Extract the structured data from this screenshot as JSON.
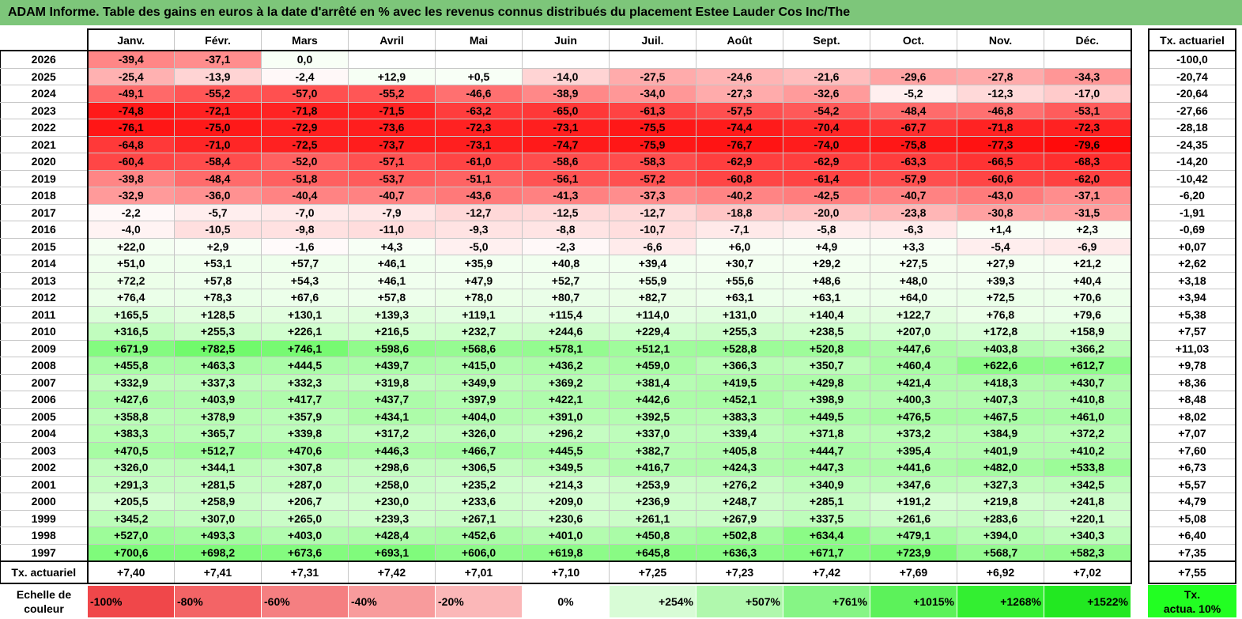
{
  "title": "ADAM Informe. Table des gains en euros à la date d'arrêté en % avec les revenus connus distribués du placement Estee Lauder Cos Inc/The",
  "months": [
    "Janv.",
    "Févr.",
    "Mars",
    "Avril",
    "Mai",
    "Juin",
    "Juil.",
    "Août",
    "Sept.",
    "Oct.",
    "Nov.",
    "Déc."
  ],
  "tx_header": "Tx. actuariel",
  "rows": [
    {
      "year": "2026",
      "vals": [
        "-39,4",
        "-37,1",
        "0,0",
        "",
        "",
        "",
        "",
        "",
        "",
        "",
        "",
        ""
      ],
      "tx": "-100,0"
    },
    {
      "year": "2025",
      "vals": [
        "-25,4",
        "-13,9",
        "-2,4",
        "+12,9",
        "+0,5",
        "-14,0",
        "-27,5",
        "-24,6",
        "-21,6",
        "-29,6",
        "-27,8",
        "-34,3"
      ],
      "tx": "-20,74"
    },
    {
      "year": "2024",
      "vals": [
        "-49,1",
        "-55,2",
        "-57,0",
        "-55,2",
        "-46,6",
        "-38,9",
        "-34,0",
        "-27,3",
        "-32,6",
        "-5,2",
        "-12,3",
        "-17,0"
      ],
      "tx": "-20,64"
    },
    {
      "year": "2023",
      "vals": [
        "-74,8",
        "-72,1",
        "-71,8",
        "-71,5",
        "-63,2",
        "-65,0",
        "-61,3",
        "-57,5",
        "-54,2",
        "-48,4",
        "-46,8",
        "-53,1"
      ],
      "tx": "-27,66"
    },
    {
      "year": "2022",
      "vals": [
        "-76,1",
        "-75,0",
        "-72,9",
        "-73,6",
        "-72,3",
        "-73,1",
        "-75,5",
        "-74,4",
        "-70,4",
        "-67,7",
        "-71,8",
        "-72,3"
      ],
      "tx": "-28,18"
    },
    {
      "year": "2021",
      "vals": [
        "-64,8",
        "-71,0",
        "-72,5",
        "-73,7",
        "-73,1",
        "-74,7",
        "-75,9",
        "-76,7",
        "-74,0",
        "-75,8",
        "-77,3",
        "-79,6"
      ],
      "tx": "-24,35"
    },
    {
      "year": "2020",
      "vals": [
        "-60,4",
        "-58,4",
        "-52,0",
        "-57,1",
        "-61,0",
        "-58,6",
        "-58,3",
        "-62,9",
        "-62,9",
        "-63,3",
        "-66,5",
        "-68,3"
      ],
      "tx": "-14,20"
    },
    {
      "year": "2019",
      "vals": [
        "-39,8",
        "-48,4",
        "-51,8",
        "-53,7",
        "-51,1",
        "-56,1",
        "-57,2",
        "-60,8",
        "-61,4",
        "-57,9",
        "-60,6",
        "-62,0"
      ],
      "tx": "-10,42"
    },
    {
      "year": "2018",
      "vals": [
        "-32,9",
        "-36,0",
        "-40,4",
        "-40,7",
        "-43,6",
        "-41,3",
        "-37,3",
        "-40,2",
        "-42,5",
        "-40,7",
        "-43,0",
        "-37,1"
      ],
      "tx": "-6,20"
    },
    {
      "year": "2017",
      "vals": [
        "-2,2",
        "-5,7",
        "-7,0",
        "-7,9",
        "-12,7",
        "-12,5",
        "-12,7",
        "-18,8",
        "-20,0",
        "-23,8",
        "-30,8",
        "-31,5"
      ],
      "tx": "-1,91"
    },
    {
      "year": "2016",
      "vals": [
        "-4,0",
        "-10,5",
        "-9,8",
        "-11,0",
        "-9,3",
        "-8,8",
        "-10,7",
        "-7,1",
        "-5,8",
        "-6,3",
        "+1,4",
        "+2,3"
      ],
      "tx": "-0,69"
    },
    {
      "year": "2015",
      "vals": [
        "+22,0",
        "+2,9",
        "-1,6",
        "+4,3",
        "-5,0",
        "-2,3",
        "-6,6",
        "+6,0",
        "+4,9",
        "+3,3",
        "-5,4",
        "-6,9"
      ],
      "tx": "+0,07"
    },
    {
      "year": "2014",
      "vals": [
        "+51,0",
        "+53,1",
        "+57,7",
        "+46,1",
        "+35,9",
        "+40,8",
        "+39,4",
        "+30,7",
        "+29,2",
        "+27,5",
        "+27,9",
        "+21,2"
      ],
      "tx": "+2,62"
    },
    {
      "year": "2013",
      "vals": [
        "+72,2",
        "+57,8",
        "+54,3",
        "+46,1",
        "+47,9",
        "+52,7",
        "+55,9",
        "+55,6",
        "+48,6",
        "+48,0",
        "+39,3",
        "+40,4"
      ],
      "tx": "+3,18"
    },
    {
      "year": "2012",
      "vals": [
        "+76,4",
        "+78,3",
        "+67,6",
        "+57,8",
        "+78,0",
        "+80,7",
        "+82,7",
        "+63,1",
        "+63,1",
        "+64,0",
        "+72,5",
        "+70,6"
      ],
      "tx": "+3,94"
    },
    {
      "year": "2011",
      "vals": [
        "+165,5",
        "+128,5",
        "+130,1",
        "+139,3",
        "+119,1",
        "+115,4",
        "+114,0",
        "+131,0",
        "+140,4",
        "+122,7",
        "+76,8",
        "+79,6"
      ],
      "tx": "+5,38"
    },
    {
      "year": "2010",
      "vals": [
        "+316,5",
        "+255,3",
        "+226,1",
        "+216,5",
        "+232,7",
        "+244,6",
        "+229,4",
        "+255,3",
        "+238,5",
        "+207,0",
        "+172,8",
        "+158,9"
      ],
      "tx": "+7,57"
    },
    {
      "year": "2009",
      "vals": [
        "+671,9",
        "+782,5",
        "+746,1",
        "+598,6",
        "+568,6",
        "+578,1",
        "+512,1",
        "+528,8",
        "+520,8",
        "+447,6",
        "+403,8",
        "+366,2"
      ],
      "tx": "+11,03"
    },
    {
      "year": "2008",
      "vals": [
        "+455,8",
        "+463,3",
        "+444,5",
        "+439,7",
        "+415,0",
        "+436,2",
        "+459,0",
        "+366,3",
        "+350,7",
        "+460,4",
        "+622,6",
        "+612,7"
      ],
      "tx": "+9,78"
    },
    {
      "year": "2007",
      "vals": [
        "+332,9",
        "+337,3",
        "+332,3",
        "+319,8",
        "+349,9",
        "+369,2",
        "+381,4",
        "+419,5",
        "+429,8",
        "+421,4",
        "+418,3",
        "+430,7"
      ],
      "tx": "+8,36"
    },
    {
      "year": "2006",
      "vals": [
        "+427,6",
        "+403,9",
        "+417,7",
        "+437,7",
        "+397,9",
        "+422,1",
        "+442,6",
        "+452,1",
        "+398,9",
        "+400,3",
        "+407,3",
        "+410,8"
      ],
      "tx": "+8,48"
    },
    {
      "year": "2005",
      "vals": [
        "+358,8",
        "+378,9",
        "+357,9",
        "+434,1",
        "+404,0",
        "+391,0",
        "+392,5",
        "+383,3",
        "+449,5",
        "+476,5",
        "+467,5",
        "+461,0"
      ],
      "tx": "+8,02"
    },
    {
      "year": "2004",
      "vals": [
        "+383,3",
        "+365,7",
        "+339,8",
        "+317,2",
        "+326,0",
        "+296,2",
        "+337,0",
        "+339,4",
        "+371,8",
        "+373,2",
        "+384,9",
        "+372,2"
      ],
      "tx": "+7,07"
    },
    {
      "year": "2003",
      "vals": [
        "+470,5",
        "+512,7",
        "+470,6",
        "+446,3",
        "+466,7",
        "+445,5",
        "+382,7",
        "+405,8",
        "+444,7",
        "+395,4",
        "+401,9",
        "+410,2"
      ],
      "tx": "+7,60"
    },
    {
      "year": "2002",
      "vals": [
        "+326,0",
        "+344,1",
        "+307,8",
        "+298,6",
        "+306,5",
        "+349,5",
        "+416,7",
        "+424,3",
        "+447,3",
        "+441,6",
        "+482,0",
        "+533,8"
      ],
      "tx": "+6,73"
    },
    {
      "year": "2001",
      "vals": [
        "+291,3",
        "+281,5",
        "+287,0",
        "+258,0",
        "+235,2",
        "+214,3",
        "+253,9",
        "+276,2",
        "+340,9",
        "+347,6",
        "+327,3",
        "+342,5"
      ],
      "tx": "+5,57"
    },
    {
      "year": "2000",
      "vals": [
        "+205,5",
        "+258,9",
        "+206,7",
        "+230,0",
        "+233,6",
        "+209,0",
        "+236,9",
        "+248,7",
        "+285,1",
        "+191,2",
        "+219,8",
        "+241,8"
      ],
      "tx": "+4,79"
    },
    {
      "year": "1999",
      "vals": [
        "+345,2",
        "+307,0",
        "+265,0",
        "+239,3",
        "+267,1",
        "+230,6",
        "+261,1",
        "+267,9",
        "+337,5",
        "+261,6",
        "+283,6",
        "+220,1"
      ],
      "tx": "+5,08"
    },
    {
      "year": "1998",
      "vals": [
        "+527,0",
        "+493,3",
        "+403,0",
        "+428,4",
        "+452,6",
        "+401,0",
        "+450,8",
        "+502,8",
        "+634,4",
        "+479,1",
        "+394,0",
        "+340,3"
      ],
      "tx": "+6,40"
    },
    {
      "year": "1997",
      "vals": [
        "+700,6",
        "+698,2",
        "+673,6",
        "+693,1",
        "+606,0",
        "+619,8",
        "+645,8",
        "+636,3",
        "+671,7",
        "+723,9",
        "+568,7",
        "+582,3"
      ],
      "tx": "+7,35"
    }
  ],
  "tx_row": {
    "label": "Tx. actuariel",
    "vals": [
      "+7,40",
      "+7,41",
      "+7,31",
      "+7,42",
      "+7,01",
      "+7,10",
      "+7,25",
      "+7,23",
      "+7,42",
      "+7,69",
      "+6,92",
      "+7,02"
    ],
    "total": "+7,55"
  },
  "scale": {
    "label_line1": "Echelle de",
    "label_line2": "couleur",
    "items": [
      "-100%",
      "-80%",
      "-60%",
      "-40%",
      "-20%",
      "0%",
      "+254%",
      "+507%",
      "+761%",
      "+1015%",
      "+1268%",
      "+1522%"
    ],
    "colors": [
      "#f0474a",
      "#f36466",
      "#f57f81",
      "#f89b9c",
      "#fbb7b8",
      "#ffffff",
      "#d8fcd6",
      "#b0f8ad",
      "#86f585",
      "#5cf25a",
      "#33ef31",
      "#22e821"
    ],
    "right_line1": "Tx.",
    "right_line2": "actua. 10%",
    "right_color": "#22ff22"
  }
}
